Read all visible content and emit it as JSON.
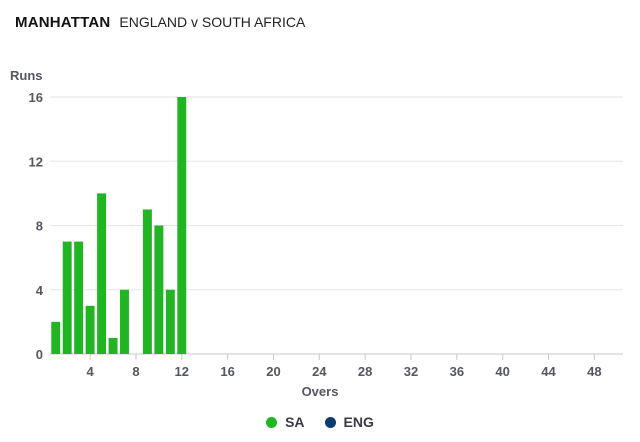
{
  "header": {
    "title": "MANHATTAN",
    "subtitle": "ENGLAND v SOUTH AFRICA"
  },
  "chart_data": {
    "type": "bar",
    "title": "MANHATTAN",
    "subtitle": "ENGLAND v SOUTH AFRICA",
    "xlabel": "Overs",
    "ylabel": "Runs",
    "xlim": [
      0,
      50
    ],
    "ylim": [
      0,
      16
    ],
    "x_ticks": [
      4,
      8,
      12,
      16,
      20,
      24,
      28,
      32,
      36,
      40,
      44,
      48
    ],
    "y_ticks": [
      0,
      4,
      8,
      12,
      16
    ],
    "grid": true,
    "legend_position": "bottom",
    "series": [
      {
        "name": "SA",
        "color": "#21b524",
        "overs": [
          1,
          2,
          3,
          4,
          5,
          6,
          7,
          8,
          9,
          10,
          11,
          12
        ],
        "values": [
          2,
          7,
          7,
          3,
          10,
          1,
          4,
          0,
          9,
          8,
          4,
          16
        ]
      },
      {
        "name": "ENG",
        "color": "#0b3c6e",
        "overs": [],
        "values": []
      }
    ]
  }
}
